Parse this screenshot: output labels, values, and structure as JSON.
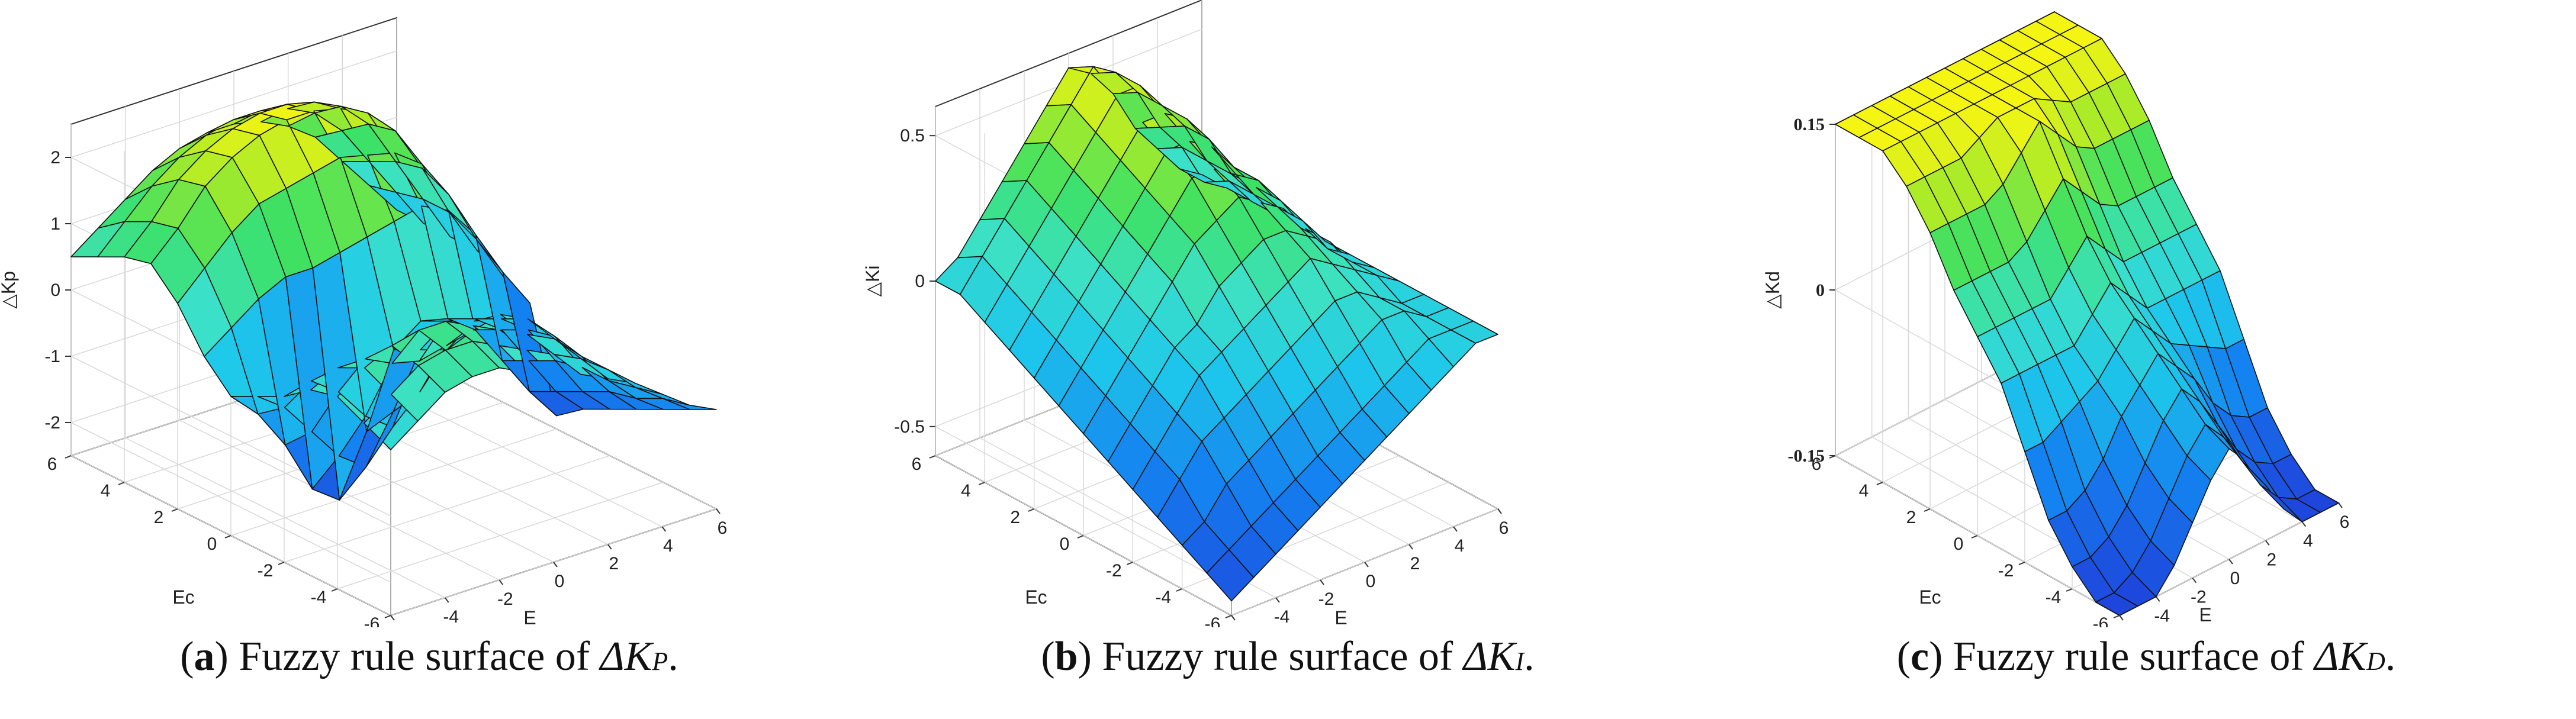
{
  "panels": [
    {
      "letter": "a",
      "caption_text": "Fuzzy rule surface of ",
      "caption_symbol": "ΔK",
      "caption_subscript": "P",
      "caption_end": ".",
      "chart_data": {
        "type": "surface",
        "xlabel": "E",
        "ylabel": "Ec",
        "zlabel": "△Kp",
        "xlim": [
          -6,
          6
        ],
        "ylim": [
          -6,
          6
        ],
        "zlim": [
          -2.5,
          2.5
        ],
        "xticks": [
          "-6",
          "-4",
          "-2",
          "0",
          "2",
          "4",
          "6"
        ],
        "yticks": [
          "-6",
          "-4",
          "-2",
          "0",
          "2",
          "4",
          "6"
        ],
        "zticks": [
          "-2",
          "-1",
          "0",
          "1",
          "2"
        ],
        "grid": true,
        "colormap": "parula",
        "z": [
          [
            0.0,
            0.3,
            0.6,
            0.7,
            0.7,
            0.5,
            0.3,
            0.2,
            0.0,
            -0.2,
            -0.5,
            -0.8,
            -1.0
          ],
          [
            0.2,
            0.5,
            0.8,
            0.9,
            0.9,
            0.7,
            0.5,
            0.3,
            0.1,
            -0.2,
            -0.6,
            -0.9,
            -1.2
          ],
          [
            0.4,
            0.7,
            0.9,
            1.0,
            1.0,
            0.8,
            0.6,
            0.4,
            0.2,
            -0.2,
            -0.7,
            -1.1,
            -1.4
          ],
          [
            0.3,
            0.5,
            0.5,
            0.3,
            0.2,
            0.3,
            0.4,
            0.5,
            0.3,
            -0.1,
            -0.7,
            -1.2,
            -1.6
          ],
          [
            0.0,
            0.1,
            -0.2,
            -0.7,
            -1.0,
            -0.6,
            -0.1,
            0.2,
            0.1,
            -0.2,
            -0.8,
            -1.4,
            -1.8
          ],
          [
            -0.2,
            -0.5,
            -1.0,
            -1.5,
            -1.8,
            -1.1,
            -0.3,
            0.0,
            -0.1,
            -0.4,
            -1.0,
            -1.6,
            -2.0
          ],
          [
            -0.4,
            -0.8,
            -1.4,
            -2.2,
            -2.5,
            -1.6,
            -0.5,
            -0.2,
            -0.3,
            -0.6,
            -1.2,
            -1.8,
            -2.3
          ],
          [
            0.0,
            0.3,
            0.6,
            0.8,
            0.8,
            0.9,
            1.0,
            1.1,
            1.2,
            1.0,
            0.5,
            -0.2,
            -0.8
          ],
          [
            0.6,
            1.0,
            1.4,
            1.7,
            1.8,
            1.9,
            2.0,
            1.9,
            1.8,
            1.5,
            0.9,
            0.1,
            -0.6
          ],
          [
            1.0,
            1.4,
            1.9,
            2.2,
            2.4,
            2.5,
            2.5,
            2.4,
            2.2,
            1.8,
            1.1,
            0.3,
            -0.4
          ],
          [
            0.9,
            1.3,
            1.8,
            2.1,
            2.3,
            2.4,
            2.4,
            2.3,
            2.1,
            1.7,
            1.0,
            0.3,
            -0.4
          ],
          [
            0.7,
            1.1,
            1.5,
            1.8,
            2.0,
            2.1,
            2.1,
            2.0,
            1.8,
            1.4,
            0.8,
            0.2,
            -0.4
          ],
          [
            0.5,
            0.8,
            1.1,
            1.4,
            1.6,
            1.7,
            1.7,
            1.6,
            1.4,
            1.1,
            0.6,
            0.1,
            -0.4
          ]
        ]
      }
    },
    {
      "letter": "b",
      "caption_text": "Fuzzy rule surface of ",
      "caption_symbol": "ΔK",
      "caption_subscript": "I",
      "caption_end": ".",
      "chart_data": {
        "type": "surface",
        "xlabel": "E",
        "ylabel": "Ec",
        "zlabel": "△Ki",
        "xlim": [
          -6,
          6
        ],
        "ylim": [
          -6,
          6
        ],
        "zlim": [
          -0.6,
          0.6
        ],
        "xticks": [
          "-6",
          "-4",
          "-2",
          "0",
          "2",
          "4",
          "6"
        ],
        "yticks": [
          "-6",
          "-4",
          "-2",
          "0",
          "2",
          "4",
          "6"
        ],
        "zticks": [
          "-0.5",
          "0",
          "0.5"
        ],
        "grid": true,
        "colormap": "parula",
        "z": [
          [
            -0.55,
            -0.5,
            -0.45,
            -0.4,
            -0.35,
            -0.3,
            -0.25,
            -0.2,
            -0.15,
            -0.1,
            -0.05,
            0.0,
            0.0
          ],
          [
            -0.5,
            -0.45,
            -0.4,
            -0.35,
            -0.3,
            -0.25,
            -0.2,
            -0.15,
            -0.1,
            -0.05,
            0.0,
            0.0,
            0.0
          ],
          [
            -0.45,
            -0.4,
            -0.3,
            -0.25,
            -0.2,
            -0.15,
            -0.1,
            -0.05,
            0.0,
            0.05,
            0.05,
            0.0,
            0.0
          ],
          [
            -0.4,
            -0.3,
            -0.2,
            -0.15,
            -0.1,
            -0.05,
            0.0,
            0.05,
            0.1,
            0.1,
            0.05,
            0.0,
            0.0
          ],
          [
            -0.35,
            -0.25,
            -0.15,
            -0.05,
            0.0,
            0.05,
            0.1,
            0.15,
            0.2,
            0.15,
            0.1,
            0.05,
            0.0
          ],
          [
            -0.3,
            -0.2,
            -0.1,
            0.0,
            0.05,
            0.15,
            0.2,
            0.25,
            0.25,
            0.2,
            0.15,
            0.05,
            0.0
          ],
          [
            -0.25,
            -0.15,
            -0.05,
            0.05,
            0.15,
            0.25,
            0.3,
            0.35,
            0.3,
            0.25,
            0.15,
            0.05,
            0.0
          ],
          [
            -0.2,
            -0.1,
            0.0,
            0.1,
            0.2,
            0.3,
            0.4,
            0.4,
            0.35,
            0.3,
            0.2,
            0.1,
            0.0
          ],
          [
            -0.15,
            -0.05,
            0.05,
            0.15,
            0.25,
            0.35,
            0.45,
            0.45,
            0.4,
            0.3,
            0.2,
            0.1,
            0.0
          ],
          [
            -0.1,
            0.0,
            0.1,
            0.2,
            0.3,
            0.4,
            0.5,
            0.5,
            0.45,
            0.35,
            0.2,
            0.1,
            0.0
          ],
          [
            -0.05,
            0.05,
            0.15,
            0.25,
            0.35,
            0.45,
            0.55,
            0.55,
            0.45,
            0.35,
            0.2,
            0.1,
            0.0
          ],
          [
            0.0,
            0.1,
            0.2,
            0.3,
            0.4,
            0.5,
            0.6,
            0.55,
            0.45,
            0.3,
            0.2,
            0.05,
            0.0
          ],
          [
            0.0,
            0.05,
            0.15,
            0.25,
            0.35,
            0.45,
            0.55,
            0.5,
            0.4,
            0.25,
            0.15,
            0.05,
            0.0
          ]
        ]
      }
    },
    {
      "letter": "c",
      "caption_text": "Fuzzy rule surface of ",
      "caption_symbol": "ΔK",
      "caption_subscript": "D",
      "caption_end": ".",
      "chart_data": {
        "type": "surface",
        "xlabel": "E",
        "ylabel": "Ec",
        "zlabel": "△Kd",
        "xlim": [
          -6,
          6
        ],
        "ylim": [
          -6,
          6
        ],
        "zlim": [
          -0.15,
          0.15
        ],
        "xticks": [
          "-6",
          "-4",
          "-2",
          "0",
          "2",
          "4",
          "6"
        ],
        "yticks": [
          "-6",
          "-4",
          "-2",
          "0",
          "2",
          "4",
          "6"
        ],
        "zticks": [
          "-0.15",
          "0",
          "0.15"
        ],
        "grid": true,
        "colormap": "parula",
        "z": [
          [
            -0.15,
            -0.15,
            -0.15,
            -0.13,
            -0.1,
            -0.07,
            -0.05,
            -0.07,
            -0.1,
            -0.13,
            -0.15,
            -0.15,
            -0.15
          ],
          [
            -0.15,
            -0.15,
            -0.14,
            -0.12,
            -0.09,
            -0.06,
            -0.04,
            -0.06,
            -0.09,
            -0.12,
            -0.14,
            -0.15,
            -0.15
          ],
          [
            -0.13,
            -0.13,
            -0.12,
            -0.1,
            -0.07,
            -0.04,
            -0.02,
            -0.04,
            -0.07,
            -0.1,
            -0.12,
            -0.13,
            -0.13
          ],
          [
            -0.1,
            -0.1,
            -0.09,
            -0.07,
            -0.04,
            -0.02,
            0.0,
            -0.02,
            -0.04,
            -0.07,
            -0.09,
            -0.1,
            -0.1
          ],
          [
            -0.05,
            -0.05,
            -0.04,
            -0.03,
            -0.02,
            0.0,
            0.02,
            0.0,
            -0.02,
            -0.03,
            -0.04,
            -0.05,
            -0.05
          ],
          [
            0.0,
            0.0,
            0.0,
            0.0,
            0.0,
            0.02,
            0.04,
            0.02,
            0.0,
            0.0,
            0.0,
            0.0,
            0.0
          ],
          [
            0.03,
            0.03,
            0.03,
            0.03,
            0.03,
            0.05,
            0.07,
            0.05,
            0.03,
            0.03,
            0.03,
            0.03,
            0.03
          ],
          [
            0.06,
            0.06,
            0.06,
            0.06,
            0.07,
            0.09,
            0.11,
            0.09,
            0.07,
            0.06,
            0.06,
            0.06,
            0.06
          ],
          [
            0.1,
            0.1,
            0.1,
            0.1,
            0.11,
            0.13,
            0.15,
            0.13,
            0.11,
            0.1,
            0.1,
            0.1,
            0.1
          ],
          [
            0.13,
            0.13,
            0.13,
            0.13,
            0.14,
            0.15,
            0.15,
            0.15,
            0.14,
            0.13,
            0.13,
            0.13,
            0.13
          ],
          [
            0.15,
            0.15,
            0.15,
            0.15,
            0.15,
            0.15,
            0.15,
            0.15,
            0.15,
            0.15,
            0.15,
            0.15,
            0.15
          ],
          [
            0.15,
            0.15,
            0.15,
            0.15,
            0.15,
            0.15,
            0.15,
            0.15,
            0.15,
            0.15,
            0.15,
            0.15,
            0.15
          ],
          [
            0.15,
            0.15,
            0.15,
            0.15,
            0.15,
            0.15,
            0.15,
            0.15,
            0.15,
            0.15,
            0.15,
            0.15,
            0.15
          ]
        ]
      }
    }
  ]
}
